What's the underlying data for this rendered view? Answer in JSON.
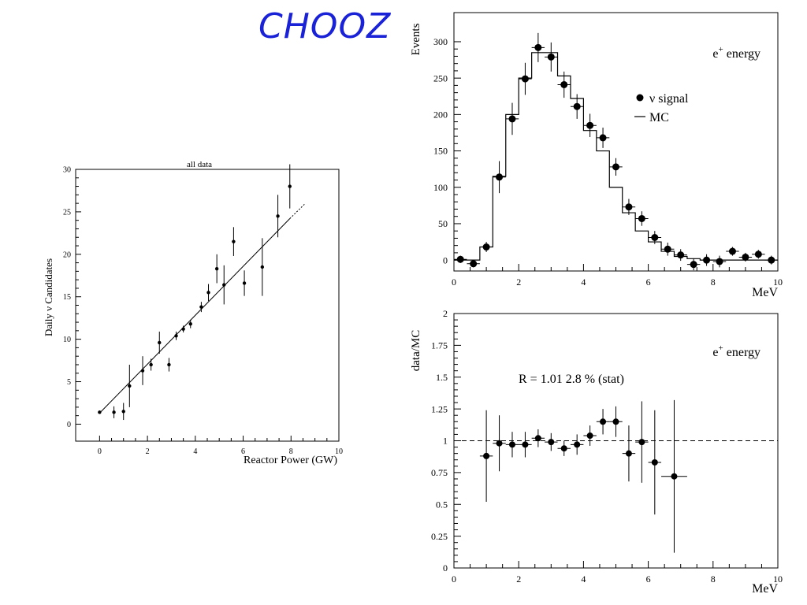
{
  "slide_title": "CHOOZ",
  "chart_data": [
    {
      "id": "daily-candidates",
      "type": "scatter",
      "title": "all data",
      "xlabel": "Reactor Power (GW)",
      "ylabel": "Daily ν Candidates",
      "xlim": [
        -1,
        10
      ],
      "ylim": [
        -2,
        30
      ],
      "xticks": [
        0,
        2,
        4,
        6,
        8,
        10
      ],
      "yticks": [
        0,
        5,
        10,
        15,
        20,
        25,
        30
      ],
      "points": [
        {
          "x": 0.0,
          "y": 1.4,
          "err": 0.2
        },
        {
          "x": 0.6,
          "y": 1.4,
          "err": 0.7
        },
        {
          "x": 1.0,
          "y": 1.5,
          "err": 1.0
        },
        {
          "x": 1.25,
          "y": 4.5,
          "err": 2.5
        },
        {
          "x": 1.8,
          "y": 6.3,
          "err": 1.7
        },
        {
          "x": 2.15,
          "y": 7.0,
          "err": 0.7
        },
        {
          "x": 2.5,
          "y": 9.6,
          "err": 1.3
        },
        {
          "x": 2.9,
          "y": 7.0,
          "err": 0.8
        },
        {
          "x": 3.2,
          "y": 10.4,
          "err": 0.5
        },
        {
          "x": 3.5,
          "y": 11.2,
          "err": 0.4
        },
        {
          "x": 3.8,
          "y": 11.8,
          "err": 0.5
        },
        {
          "x": 4.25,
          "y": 13.8,
          "err": 0.6
        },
        {
          "x": 4.55,
          "y": 15.5,
          "err": 1.0
        },
        {
          "x": 4.9,
          "y": 18.3,
          "err": 1.7
        },
        {
          "x": 5.2,
          "y": 16.4,
          "err": 2.3
        },
        {
          "x": 5.6,
          "y": 21.5,
          "err": 1.7
        },
        {
          "x": 6.05,
          "y": 16.6,
          "err": 1.5
        },
        {
          "x": 6.8,
          "y": 18.5,
          "err": 3.4
        },
        {
          "x": 7.45,
          "y": 24.5,
          "err": 2.5
        },
        {
          "x": 7.95,
          "y": 28.0,
          "err": 2.6
        }
      ],
      "fit_line": {
        "x": [
          0,
          7.95
        ],
        "y": [
          1.3,
          24.2
        ]
      },
      "fit_extension": {
        "x": [
          7.95,
          8.6
        ],
        "y": [
          24.2,
          26.0
        ]
      }
    },
    {
      "id": "positron-energy",
      "type": "bar",
      "annotation": "e+ energy",
      "xlabel": "MeV",
      "ylabel": "Events",
      "xlim": [
        0,
        10
      ],
      "ylim": [
        -15,
        340
      ],
      "xticks": [
        0,
        2,
        4,
        6,
        8,
        10
      ],
      "yticks": [
        0,
        50,
        100,
        150,
        200,
        250,
        300
      ],
      "legend": [
        {
          "marker": "dot",
          "label": "ν signal"
        },
        {
          "marker": "line",
          "label": "MC"
        }
      ],
      "legend_position": "top-right",
      "mc_bin_edges": [
        0,
        0.4,
        0.8,
        1.2,
        1.6,
        2.0,
        2.4,
        2.8,
        3.2,
        3.6,
        4.0,
        4.4,
        4.8,
        5.2,
        5.6,
        6.0,
        6.4,
        6.8,
        7.2,
        7.6,
        8.0,
        8.4,
        8.8,
        9.2,
        9.6,
        10.0
      ],
      "mc_values": [
        0,
        0,
        18,
        115,
        200,
        250,
        285,
        285,
        253,
        222,
        178,
        150,
        100,
        65,
        40,
        25,
        12,
        5,
        2,
        0,
        0,
        0,
        0,
        0,
        0
      ],
      "signal": [
        {
          "x": 0.2,
          "y": 1,
          "err": 5
        },
        {
          "x": 0.6,
          "y": -5,
          "err": 5
        },
        {
          "x": 1.0,
          "y": 18,
          "err": 7
        },
        {
          "x": 1.4,
          "y": 114,
          "err": 22
        },
        {
          "x": 1.8,
          "y": 194,
          "err": 22
        },
        {
          "x": 2.2,
          "y": 249,
          "err": 22
        },
        {
          "x": 2.6,
          "y": 292,
          "err": 20
        },
        {
          "x": 3.0,
          "y": 279,
          "err": 20
        },
        {
          "x": 3.4,
          "y": 241,
          "err": 18
        },
        {
          "x": 3.8,
          "y": 211,
          "err": 17
        },
        {
          "x": 4.2,
          "y": 185,
          "err": 16
        },
        {
          "x": 4.6,
          "y": 168,
          "err": 14
        },
        {
          "x": 5.0,
          "y": 128,
          "err": 12
        },
        {
          "x": 5.4,
          "y": 73,
          "err": 11
        },
        {
          "x": 5.8,
          "y": 57,
          "err": 10
        },
        {
          "x": 6.2,
          "y": 31,
          "err": 9
        },
        {
          "x": 6.6,
          "y": 15,
          "err": 9
        },
        {
          "x": 7.0,
          "y": 7,
          "err": 8
        },
        {
          "x": 7.4,
          "y": -6,
          "err": 8
        },
        {
          "x": 7.8,
          "y": 0,
          "err": 8
        },
        {
          "x": 8.2,
          "y": -2,
          "err": 8
        },
        {
          "x": 8.6,
          "y": 12,
          "err": 6
        },
        {
          "x": 9.0,
          "y": 4,
          "err": 6
        },
        {
          "x": 9.4,
          "y": 8,
          "err": 6
        },
        {
          "x": 9.8,
          "y": 0,
          "err": 6
        }
      ]
    },
    {
      "id": "data-over-mc",
      "type": "scatter",
      "annotation": "e+ energy",
      "ratio_label": "R = 1.01    2.8 % (stat)",
      "xlabel": "MeV",
      "ylabel": "data/MC",
      "xlim": [
        0,
        10
      ],
      "ylim": [
        0,
        2
      ],
      "xticks": [
        0,
        2,
        4,
        6,
        8,
        10
      ],
      "yticks": [
        0,
        0.25,
        0.5,
        0.75,
        1,
        1.25,
        1.5,
        1.75,
        2
      ],
      "reference_line": 1,
      "points": [
        {
          "x": 1.0,
          "y": 0.88,
          "yerr": 0.36,
          "xerr": 0.2
        },
        {
          "x": 1.4,
          "y": 0.98,
          "yerr": 0.22,
          "xerr": 0.2
        },
        {
          "x": 1.8,
          "y": 0.97,
          "yerr": 0.1,
          "xerr": 0.2
        },
        {
          "x": 2.2,
          "y": 0.97,
          "yerr": 0.1,
          "xerr": 0.2
        },
        {
          "x": 2.6,
          "y": 1.02,
          "yerr": 0.07,
          "xerr": 0.2
        },
        {
          "x": 3.0,
          "y": 0.99,
          "yerr": 0.07,
          "xerr": 0.2
        },
        {
          "x": 3.4,
          "y": 0.94,
          "yerr": 0.06,
          "xerr": 0.2
        },
        {
          "x": 3.8,
          "y": 0.97,
          "yerr": 0.08,
          "xerr": 0.2
        },
        {
          "x": 4.2,
          "y": 1.04,
          "yerr": 0.08,
          "xerr": 0.2
        },
        {
          "x": 4.6,
          "y": 1.15,
          "yerr": 0.1,
          "xerr": 0.2
        },
        {
          "x": 5.0,
          "y": 1.15,
          "yerr": 0.12,
          "xerr": 0.2
        },
        {
          "x": 5.4,
          "y": 0.9,
          "yerr": 0.22,
          "xerr": 0.2
        },
        {
          "x": 5.8,
          "y": 0.99,
          "yerr": 0.32,
          "xerr": 0.2
        },
        {
          "x": 6.2,
          "y": 0.83,
          "yerr": 0.41,
          "xerr": 0.2
        },
        {
          "x": 6.8,
          "y": 0.72,
          "yerr": 0.6,
          "xerr": 0.4
        }
      ]
    }
  ]
}
